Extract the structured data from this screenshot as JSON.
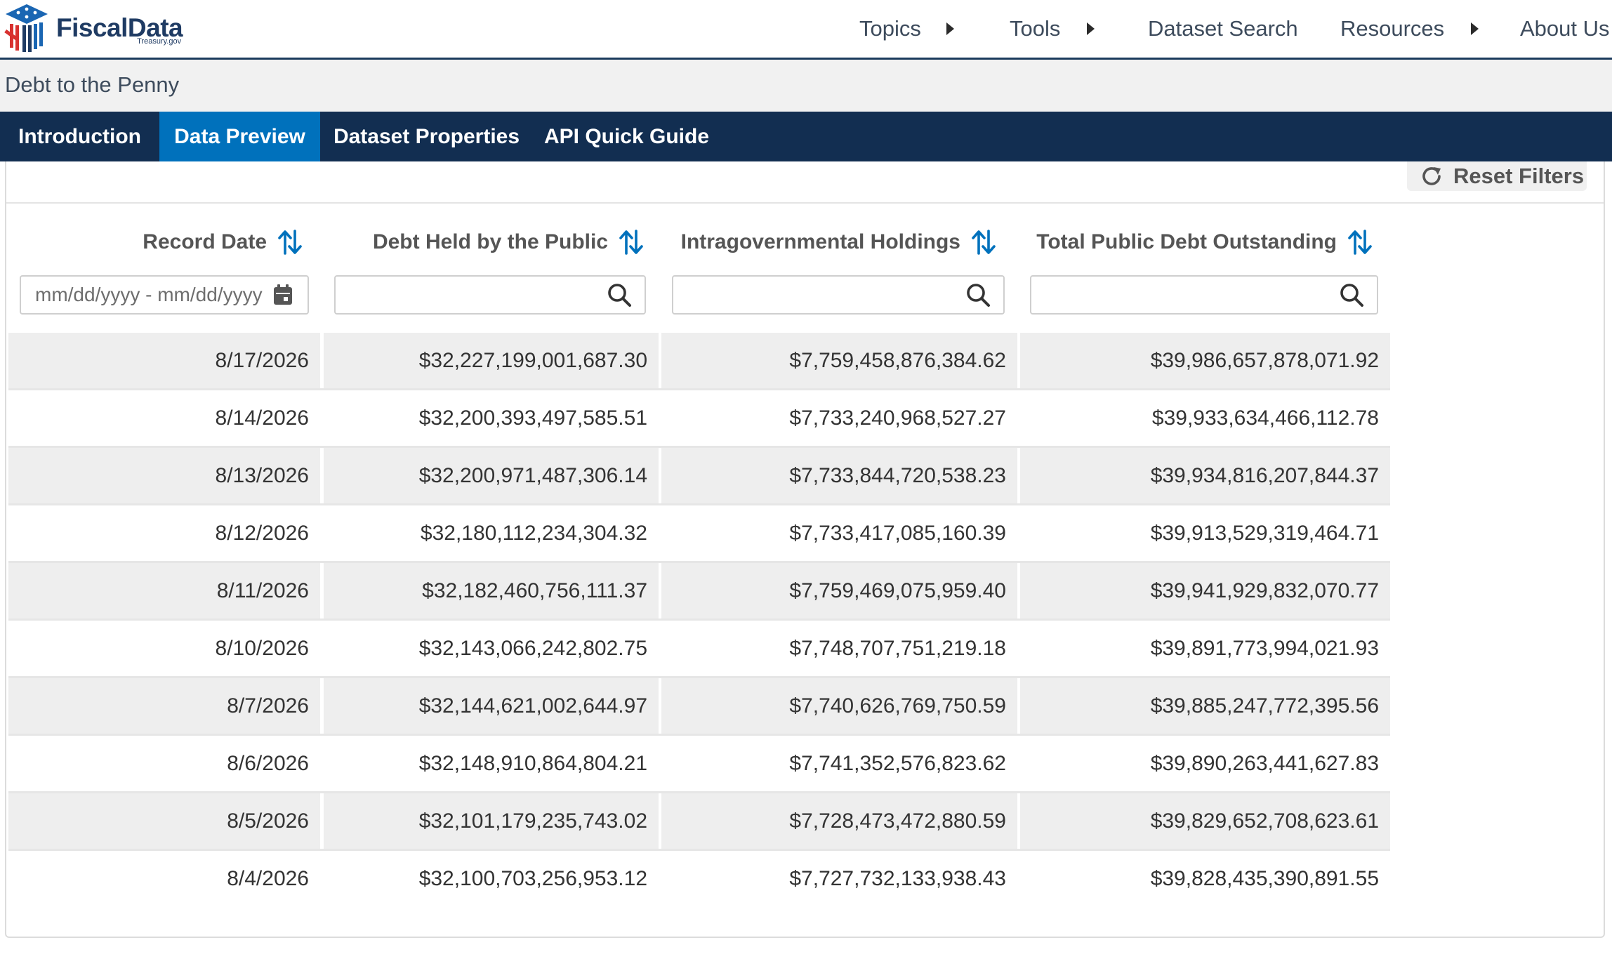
{
  "brand": {
    "name": "FiscalData",
    "sub": "Treasury.gov",
    "colors": {
      "navy": "#1f3b63",
      "red": "#d8312f",
      "blue": "#1a66b3"
    }
  },
  "nav": {
    "items": [
      {
        "label": "Topics",
        "has_caret": true
      },
      {
        "label": "Tools",
        "has_caret": true
      },
      {
        "label": "Dataset Search",
        "has_caret": false
      },
      {
        "label": "Resources",
        "has_caret": true
      },
      {
        "label": "About Us",
        "has_caret": false
      }
    ]
  },
  "breadcrumb": {
    "title": "Debt to the Penny"
  },
  "tabs": [
    {
      "label": "Introduction",
      "active": false
    },
    {
      "label": "Data Preview",
      "active": true
    },
    {
      "label": "Dataset Properties",
      "active": false
    },
    {
      "label": "API Quick Guide",
      "active": false
    }
  ],
  "toolbar": {
    "reset_label": "Reset Filters",
    "reset_icon": "refresh-icon"
  },
  "table": {
    "columns": [
      {
        "label": "Record Date",
        "filter_placeholder": "mm/dd/yyyy - mm/dd/yyyy",
        "filter_icon": "calendar-icon"
      },
      {
        "label": "Debt Held by the Public",
        "filter_placeholder": "",
        "filter_icon": "search-icon"
      },
      {
        "label": "Intragovernmental Holdings",
        "filter_placeholder": "",
        "filter_icon": "search-icon"
      },
      {
        "label": "Total Public Debt Outstanding",
        "filter_placeholder": "",
        "filter_icon": "search-icon"
      }
    ],
    "rows": [
      [
        "8/17/2026",
        "$32,227,199,001,687.30",
        "$7,759,458,876,384.62",
        "$39,986,657,878,071.92"
      ],
      [
        "8/14/2026",
        "$32,200,393,497,585.51",
        "$7,733,240,968,527.27",
        "$39,933,634,466,112.78"
      ],
      [
        "8/13/2026",
        "$32,200,971,487,306.14",
        "$7,733,844,720,538.23",
        "$39,934,816,207,844.37"
      ],
      [
        "8/12/2026",
        "$32,180,112,234,304.32",
        "$7,733,417,085,160.39",
        "$39,913,529,319,464.71"
      ],
      [
        "8/11/2026",
        "$32,182,460,756,111.37",
        "$7,759,469,075,959.40",
        "$39,941,929,832,070.77"
      ],
      [
        "8/10/2026",
        "$32,143,066,242,802.75",
        "$7,748,707,751,219.18",
        "$39,891,773,994,021.93"
      ],
      [
        "8/7/2026",
        "$32,144,621,002,644.97",
        "$7,740,626,769,750.59",
        "$39,885,247,772,395.56"
      ],
      [
        "8/6/2026",
        "$32,148,910,864,804.21",
        "$7,741,352,576,823.62",
        "$39,890,263,441,627.83"
      ],
      [
        "8/5/2026",
        "$32,101,179,235,743.02",
        "$7,728,473,472,880.59",
        "$39,829,652,708,623.61"
      ],
      [
        "8/4/2026",
        "$32,100,703,256,953.12",
        "$7,727,732,133,938.43",
        "$39,828,435,390,891.55"
      ]
    ]
  }
}
